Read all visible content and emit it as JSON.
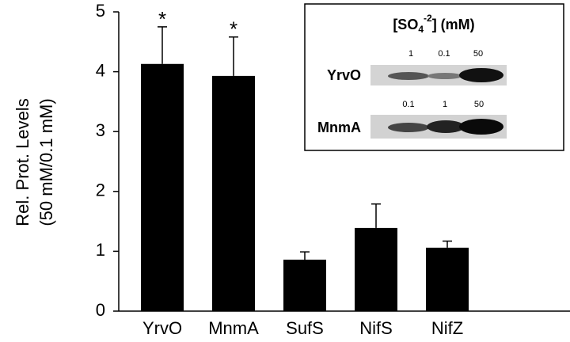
{
  "chart_data": {
    "type": "bar",
    "y_label_lines": [
      "Rel. Prot. Levels",
      "(50 mM/0.1 mM)"
    ],
    "categories": [
      "YrvO",
      "MnmA",
      "SufS",
      "NifS",
      "NifZ"
    ],
    "values": [
      4.13,
      3.93,
      0.86,
      1.39,
      1.06
    ],
    "errors": [
      0.62,
      0.65,
      0.13,
      0.4,
      0.11
    ],
    "significance": [
      "*",
      "*",
      null,
      null,
      null
    ],
    "color": "#000000",
    "ylim": [
      0,
      5
    ],
    "yticks": [
      0,
      1,
      2,
      3,
      4,
      5
    ],
    "grid": false
  },
  "inset": {
    "title": {
      "pre": "[SO",
      "sub": "4",
      "sup": "-2",
      "post": "] (mM)"
    },
    "rows": [
      {
        "label": "YrvO",
        "lanes": [
          "1",
          "0.1",
          "50"
        ]
      },
      {
        "label": "MnmA",
        "lanes": [
          "0.1",
          "1",
          "50"
        ]
      }
    ]
  }
}
